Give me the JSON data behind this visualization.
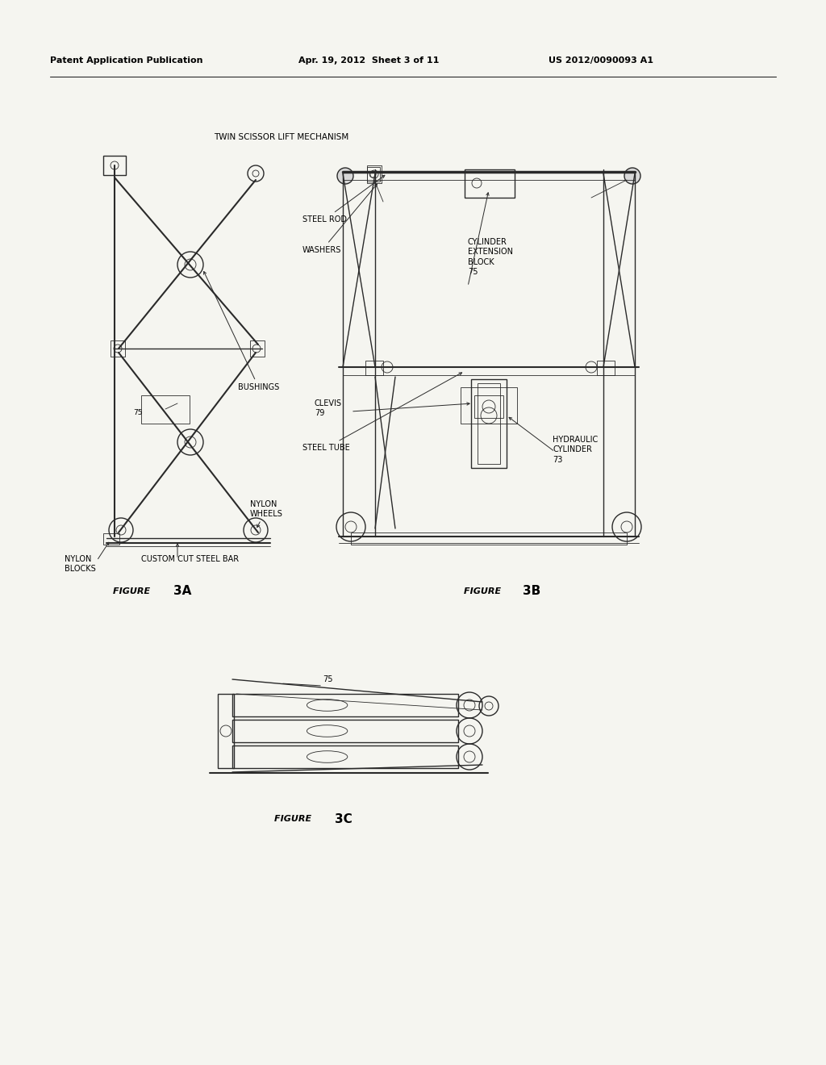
{
  "bg_color": "#f5f5f0",
  "line_color": "#2a2a2a",
  "text_color": "#000000",
  "page_width": 10.24,
  "page_height": 13.2,
  "header_left": "Patent Application Publication",
  "header_mid": "Apr. 19, 2012  Sheet 3 of 11",
  "header_right": "US 2012/0090093 A1",
  "title": "TWIN SCISSOR LIFT MECHANISM",
  "fig3a": "FIGURE 3A",
  "fig3b": "FIGURE 3B",
  "fig3c": "FIGURE 3C",
  "lw_heavy": 1.5,
  "lw_med": 1.0,
  "lw_thin": 0.6,
  "fs_annotation": 7,
  "fs_figure": 8,
  "fs_figure_num": 11,
  "fs_header": 8,
  "fs_title": 7.5
}
